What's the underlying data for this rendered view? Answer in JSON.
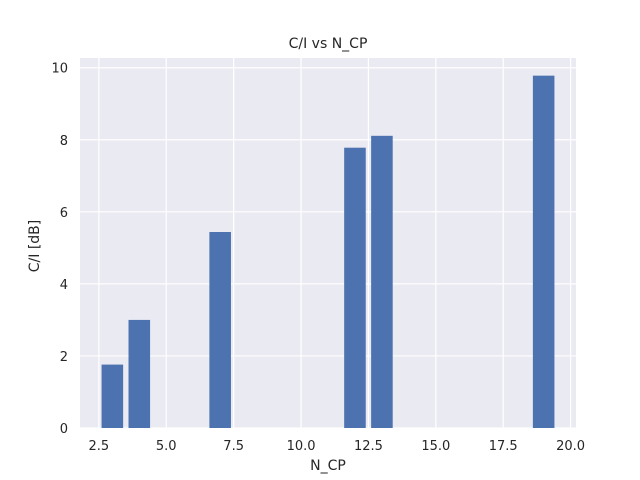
{
  "chart_data": {
    "type": "bar",
    "title": "C/I vs N_CP",
    "xlabel": "N_CP",
    "ylabel": "C/I [dB]",
    "x": [
      3,
      4,
      7,
      12,
      13,
      19
    ],
    "values": [
      1.76,
      3.0,
      5.44,
      7.78,
      8.11,
      9.78
    ],
    "bar_width": 0.8,
    "xlim": [
      1.8,
      20.2
    ],
    "ylim": [
      0,
      10.27
    ],
    "xticks": [
      2.5,
      5.0,
      7.5,
      10.0,
      12.5,
      15.0,
      17.5,
      20.0
    ],
    "xtick_labels": [
      "2.5",
      "5.0",
      "7.5",
      "10.0",
      "12.5",
      "15.0",
      "17.5",
      "20.0"
    ],
    "yticks": [
      0,
      2,
      4,
      6,
      8,
      10
    ],
    "ytick_labels": [
      "0",
      "2",
      "4",
      "6",
      "8",
      "10"
    ],
    "grid": true,
    "colors": {
      "bar": "#4c72b0",
      "plot_background": "#eaeaf2",
      "grid": "#ffffff"
    }
  }
}
